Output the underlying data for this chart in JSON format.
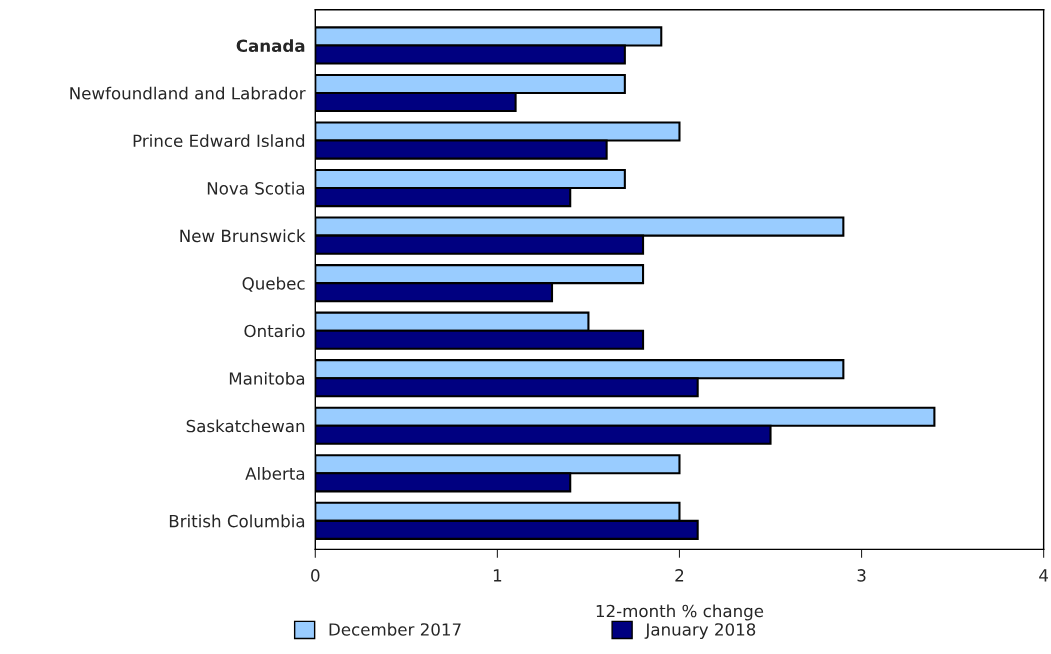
{
  "chart_data": {
    "type": "bar",
    "orientation": "horizontal",
    "categories": [
      "Canada",
      "Newfoundland and Labrador",
      "Prince Edward Island",
      "Nova Scotia",
      "New Brunswick",
      "Quebec",
      "Ontario",
      "Manitoba",
      "Saskatchewan",
      "Alberta",
      "British Columbia"
    ],
    "series": [
      {
        "name": "December 2017",
        "color": "#99ccff",
        "values": [
          1.9,
          1.7,
          2.0,
          1.7,
          2.9,
          1.8,
          1.5,
          2.9,
          3.4,
          2.0,
          2.0
        ]
      },
      {
        "name": "January 2018",
        "color": "#000080",
        "values": [
          1.7,
          1.1,
          1.6,
          1.4,
          1.8,
          1.3,
          1.8,
          2.1,
          2.5,
          1.4,
          2.1
        ]
      }
    ],
    "xlabel": "12-month % change",
    "xlim": [
      0,
      4
    ],
    "xticks": [
      0,
      1,
      2,
      3,
      4
    ],
    "grid": false,
    "legend": "bottom"
  }
}
